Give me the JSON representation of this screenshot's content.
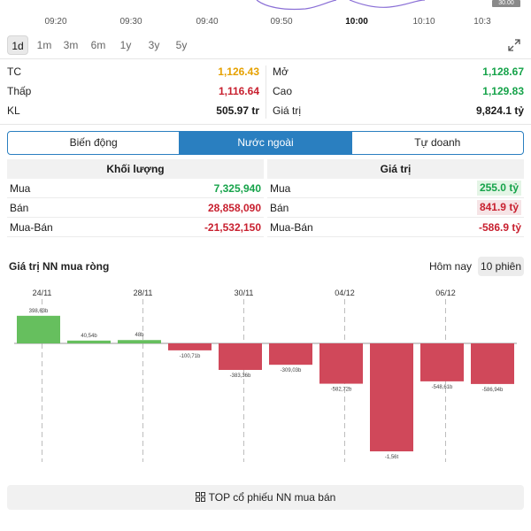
{
  "intraday": {
    "time_labels": [
      "09:20",
      "09:30",
      "09:40",
      "09:50",
      "10:00",
      "10:10",
      "10:3"
    ],
    "active_time": "10:00",
    "price_tag": "30.00"
  },
  "ranges": {
    "items": [
      "1d",
      "1m",
      "3m",
      "6m",
      "1y",
      "3y",
      "5y"
    ],
    "active": "1d"
  },
  "stats": {
    "left": [
      {
        "label": "TC",
        "value": "1,126.43",
        "color": "#e6a100"
      },
      {
        "label": "Thấp",
        "value": "1,116.64",
        "color": "#c8202f"
      },
      {
        "label": "KL",
        "value": "505.97 tr",
        "color": "#1a1a1a"
      }
    ],
    "right": [
      {
        "label": "Mở",
        "value": "1,128.67",
        "color": "#16a34a"
      },
      {
        "label": "Cao",
        "value": "1,129.83",
        "color": "#16a34a"
      },
      {
        "label": "Giá trị",
        "value": "9,824.1 tỷ",
        "color": "#1a1a1a"
      }
    ]
  },
  "tabs": {
    "items": [
      "Biến động",
      "Nước ngoài",
      "Tự doanh"
    ],
    "active": "Nước ngoài"
  },
  "volume_table": {
    "header": "Khối lượng",
    "rows": [
      {
        "label": "Mua",
        "value": "7,325,940",
        "tone": "green"
      },
      {
        "label": "Bán",
        "value": "28,858,090",
        "tone": "red"
      },
      {
        "label": "Mua-Bán",
        "value": "-21,532,150",
        "tone": "red"
      }
    ]
  },
  "value_table": {
    "header": "Giá trị",
    "rows": [
      {
        "label": "Mua",
        "value": "255.0 tỷ",
        "tone": "green"
      },
      {
        "label": "Bán",
        "value": "841.9 tỷ",
        "tone": "red"
      },
      {
        "label": "Mua-Bán",
        "value": "-586.9 tỷ",
        "tone": "red"
      }
    ]
  },
  "net_section": {
    "title": "Giá trị NN mua ròng",
    "periods": [
      "Hôm nay",
      "10 phiên"
    ],
    "active_period": "10 phiên"
  },
  "colors": {
    "accent": "#2a7fc0",
    "positive": "#66bf5e",
    "negative": "#d0485a"
  },
  "chart_data": {
    "type": "bar",
    "title": "Giá trị NN mua ròng",
    "x_tick_labels": [
      "24/11",
      "28/11",
      "30/11",
      "04/12",
      "06/12"
    ],
    "values": [
      398.63,
      40.54,
      48,
      -100.71,
      -383.36,
      -309.03,
      -582.72,
      -1560,
      -548.61,
      -586.94
    ],
    "value_labels": [
      "398,63b",
      "40,54b",
      "48b",
      "-100,71b",
      "-383,36b",
      "-309,03b",
      "-582,72b",
      "-1,56t",
      "-548,61b",
      "-586,94b"
    ],
    "unit": "tỷ",
    "grid": "dashed vertical at x ticks"
  },
  "footer_button": {
    "label": "TOP cổ phiếu NN mua bán",
    "icon": "grid-icon"
  }
}
